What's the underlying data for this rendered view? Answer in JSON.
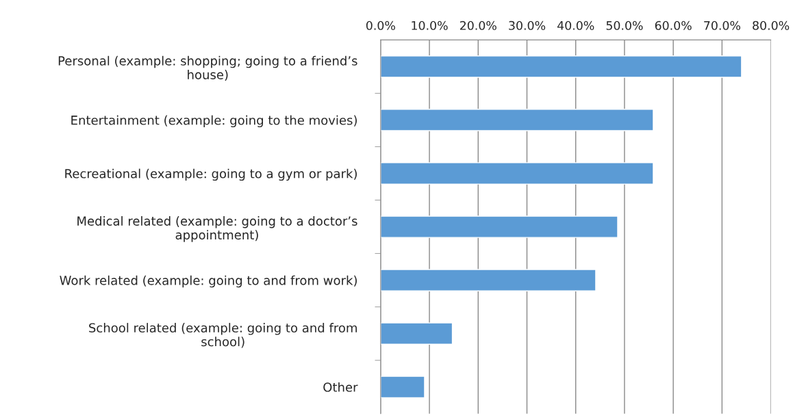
{
  "chart_data": {
    "type": "bar",
    "orientation": "horizontal",
    "categories": [
      "Personal (example: shopping; going to a friend’s\nhouse)",
      "Entertainment (example: going to the movies)",
      "Recreational (example: going to a gym or park)",
      "Medical related (example: going to a doctor’s\nappointment)",
      "Work related (example: going to and from work)",
      "School related (example: going to and from\nschool)",
      "Other"
    ],
    "values": [
      74.0,
      55.9,
      55.9,
      48.6,
      44.1,
      14.7,
      9.0
    ],
    "color": "#5b9bd5",
    "xlim": [
      0,
      80
    ],
    "xticks": [
      {
        "value": 0,
        "label": "0.0%"
      },
      {
        "value": 10,
        "label": "10.0%"
      },
      {
        "value": 20,
        "label": "20.0%"
      },
      {
        "value": 30,
        "label": "30.0%"
      },
      {
        "value": 40,
        "label": "40.0%"
      },
      {
        "value": 50,
        "label": "50.0%"
      },
      {
        "value": 60,
        "label": "60.0%"
      },
      {
        "value": 70,
        "label": "70.0%"
      },
      {
        "value": 80,
        "label": "80.0%"
      }
    ],
    "grid": "x",
    "legend": false
  }
}
